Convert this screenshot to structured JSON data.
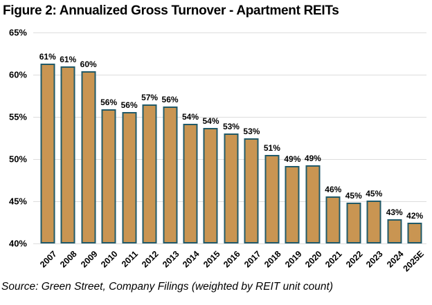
{
  "header": {
    "title": "Figure 2: Annualized Gross Turnover - Apartment REITs"
  },
  "footer": {
    "source": "Source: Green Street, Company Filings (weighted by REIT unit count)"
  },
  "chart_data": {
    "type": "bar",
    "title": "Figure 2: Annualized Gross Turnover - Apartment REITs",
    "categories": [
      "2007",
      "2008",
      "2009",
      "2010",
      "2011",
      "2012",
      "2013",
      "2014",
      "2015",
      "2016",
      "2017",
      "2018",
      "2019",
      "2020",
      "2021",
      "2022",
      "2023",
      "2024",
      "2025E"
    ],
    "values": [
      61.3,
      61.0,
      60.4,
      55.9,
      55.6,
      56.5,
      56.2,
      54.2,
      53.7,
      53.0,
      52.5,
      50.5,
      49.2,
      49.3,
      45.6,
      44.8,
      45.1,
      42.9,
      42.5
    ],
    "data_labels": [
      "61%",
      "61%",
      "60%",
      "56%",
      "56%",
      "57%",
      "56%",
      "54%",
      "54%",
      "53%",
      "53%",
      "51%",
      "49%",
      "49%",
      "46%",
      "45%",
      "45%",
      "43%",
      "42%"
    ],
    "xlabel": "",
    "ylabel": "",
    "ylim": [
      40,
      65
    ],
    "ytick_values": [
      65,
      60,
      55,
      50,
      45,
      40
    ],
    "ytick_labels": [
      "65%",
      "60%",
      "55%",
      "50%",
      "45%",
      "40%"
    ],
    "grid": true,
    "legend": "none",
    "colors": {
      "bar_fill": "#C99552",
      "bar_border": "#215A69",
      "gridline": "#DDDDDD",
      "text": "#000000",
      "background": "#FFFFFF"
    },
    "source": "Source: Green Street, Company Filings (weighted by REIT unit count)"
  }
}
